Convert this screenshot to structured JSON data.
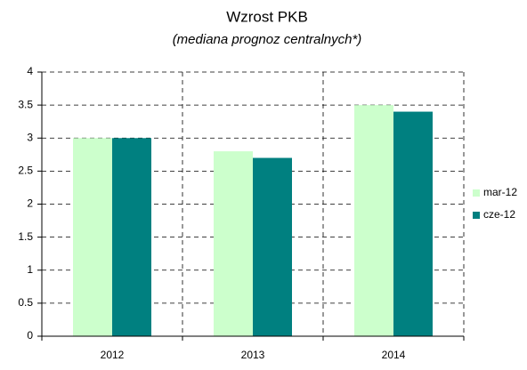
{
  "chart_data": {
    "type": "bar",
    "title": "Wzrost PKB",
    "subtitle": "(mediana prognoz centralnych*)",
    "categories": [
      "2012",
      "2013",
      "2014"
    ],
    "series": [
      {
        "name": "mar-12",
        "color": "#ccffcc",
        "values": [
          3,
          2.8,
          3.5
        ]
      },
      {
        "name": "cze-12",
        "color": "#008080",
        "values": [
          3,
          2.7,
          3.4
        ]
      }
    ],
    "ylim": [
      0,
      4
    ],
    "yticks": [
      0,
      0.5,
      1,
      1.5,
      2,
      2.5,
      3,
      3.5,
      4
    ],
    "grid": true,
    "legend": "right"
  }
}
